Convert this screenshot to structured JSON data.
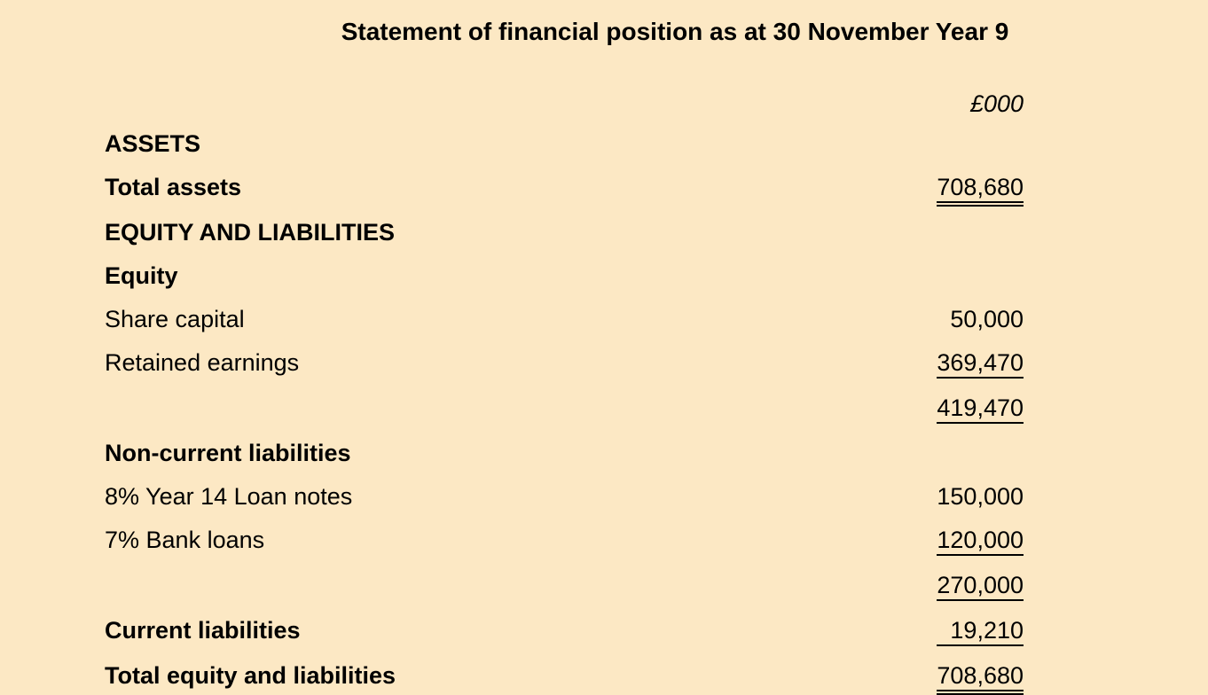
{
  "document": {
    "title": "Statement of financial position as at 30 November Year 9",
    "currency_header": "£000",
    "background_color": "#fce8c4",
    "text_color": "#000000",
    "title_fontsize": 28,
    "body_fontsize": 27,
    "font_family": "Arial, Helvetica, sans-serif"
  },
  "sections": {
    "assets_header": "ASSETS",
    "total_assets_label": "Total assets",
    "total_assets_value": "708,680",
    "equity_liabilities_header": "EQUITY AND LIABILITIES",
    "equity_header": "Equity",
    "share_capital_label": "Share capital",
    "share_capital_value": "50,000",
    "retained_earnings_label": "Retained earnings",
    "retained_earnings_value": "369,470",
    "equity_total_value": "419,470",
    "non_current_liabilities_header": "Non-current liabilities",
    "loan_notes_label": "8% Year 14 Loan notes",
    "loan_notes_value": "150,000",
    "bank_loans_label": "7% Bank loans",
    "bank_loans_value": "120,000",
    "non_current_total_value": "270,000",
    "current_liabilities_label": "Current liabilities",
    "current_liabilities_value": "19,210",
    "total_equity_liabilities_label": "Total equity and liabilities",
    "total_equity_liabilities_value": "708,680"
  },
  "styling": {
    "underline_color": "#000000",
    "underline_width": 2,
    "value_column_width": 200,
    "container_padding": 118
  }
}
